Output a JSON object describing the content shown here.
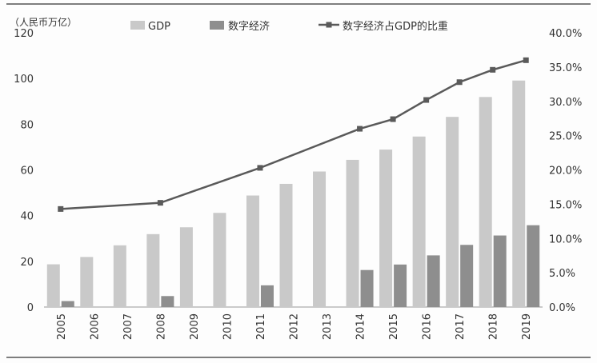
{
  "chart_data": {
    "type": "bar",
    "categories": [
      "2005",
      "2006",
      "2007",
      "2008",
      "2009",
      "2010",
      "2011",
      "2012",
      "2013",
      "2014",
      "2015",
      "2016",
      "2017",
      "2018",
      "2019"
    ],
    "y_unit_label": "（人民币万亿）",
    "left_axis": {
      "range": [
        0,
        120
      ],
      "ticks": [
        "0",
        "20",
        "40",
        "60",
        "80",
        "100",
        "120"
      ]
    },
    "right_axis": {
      "range": [
        0,
        0.4
      ],
      "ticks": [
        "0.0%",
        "5.0%",
        "10.0%",
        "15.0%",
        "20.0%",
        "25.0%",
        "30.0%",
        "35.0%",
        "40.0%"
      ]
    },
    "legend_placement": "top",
    "series": [
      {
        "name": "GDP",
        "kind": "bar",
        "axis": "left",
        "color": "#c9c9c9",
        "values": [
          18.7,
          21.9,
          27.0,
          31.9,
          34.9,
          41.2,
          48.8,
          53.9,
          59.3,
          64.4,
          68.9,
          74.6,
          83.2,
          91.9,
          99.1
        ]
      },
      {
        "name": "数字经济",
        "kind": "bar",
        "axis": "left",
        "color": "#8e8e8e",
        "values": [
          2.6,
          null,
          null,
          4.8,
          null,
          null,
          9.5,
          null,
          null,
          16.2,
          18.6,
          22.6,
          27.2,
          31.3,
          35.8
        ]
      },
      {
        "name": "数字经济占GDP的比重",
        "kind": "line",
        "axis": "right",
        "color": "#5a5a5a",
        "values": [
          0.143,
          null,
          null,
          0.152,
          null,
          null,
          0.203,
          null,
          null,
          0.26,
          0.274,
          0.302,
          0.328,
          0.346,
          0.36
        ]
      }
    ]
  }
}
